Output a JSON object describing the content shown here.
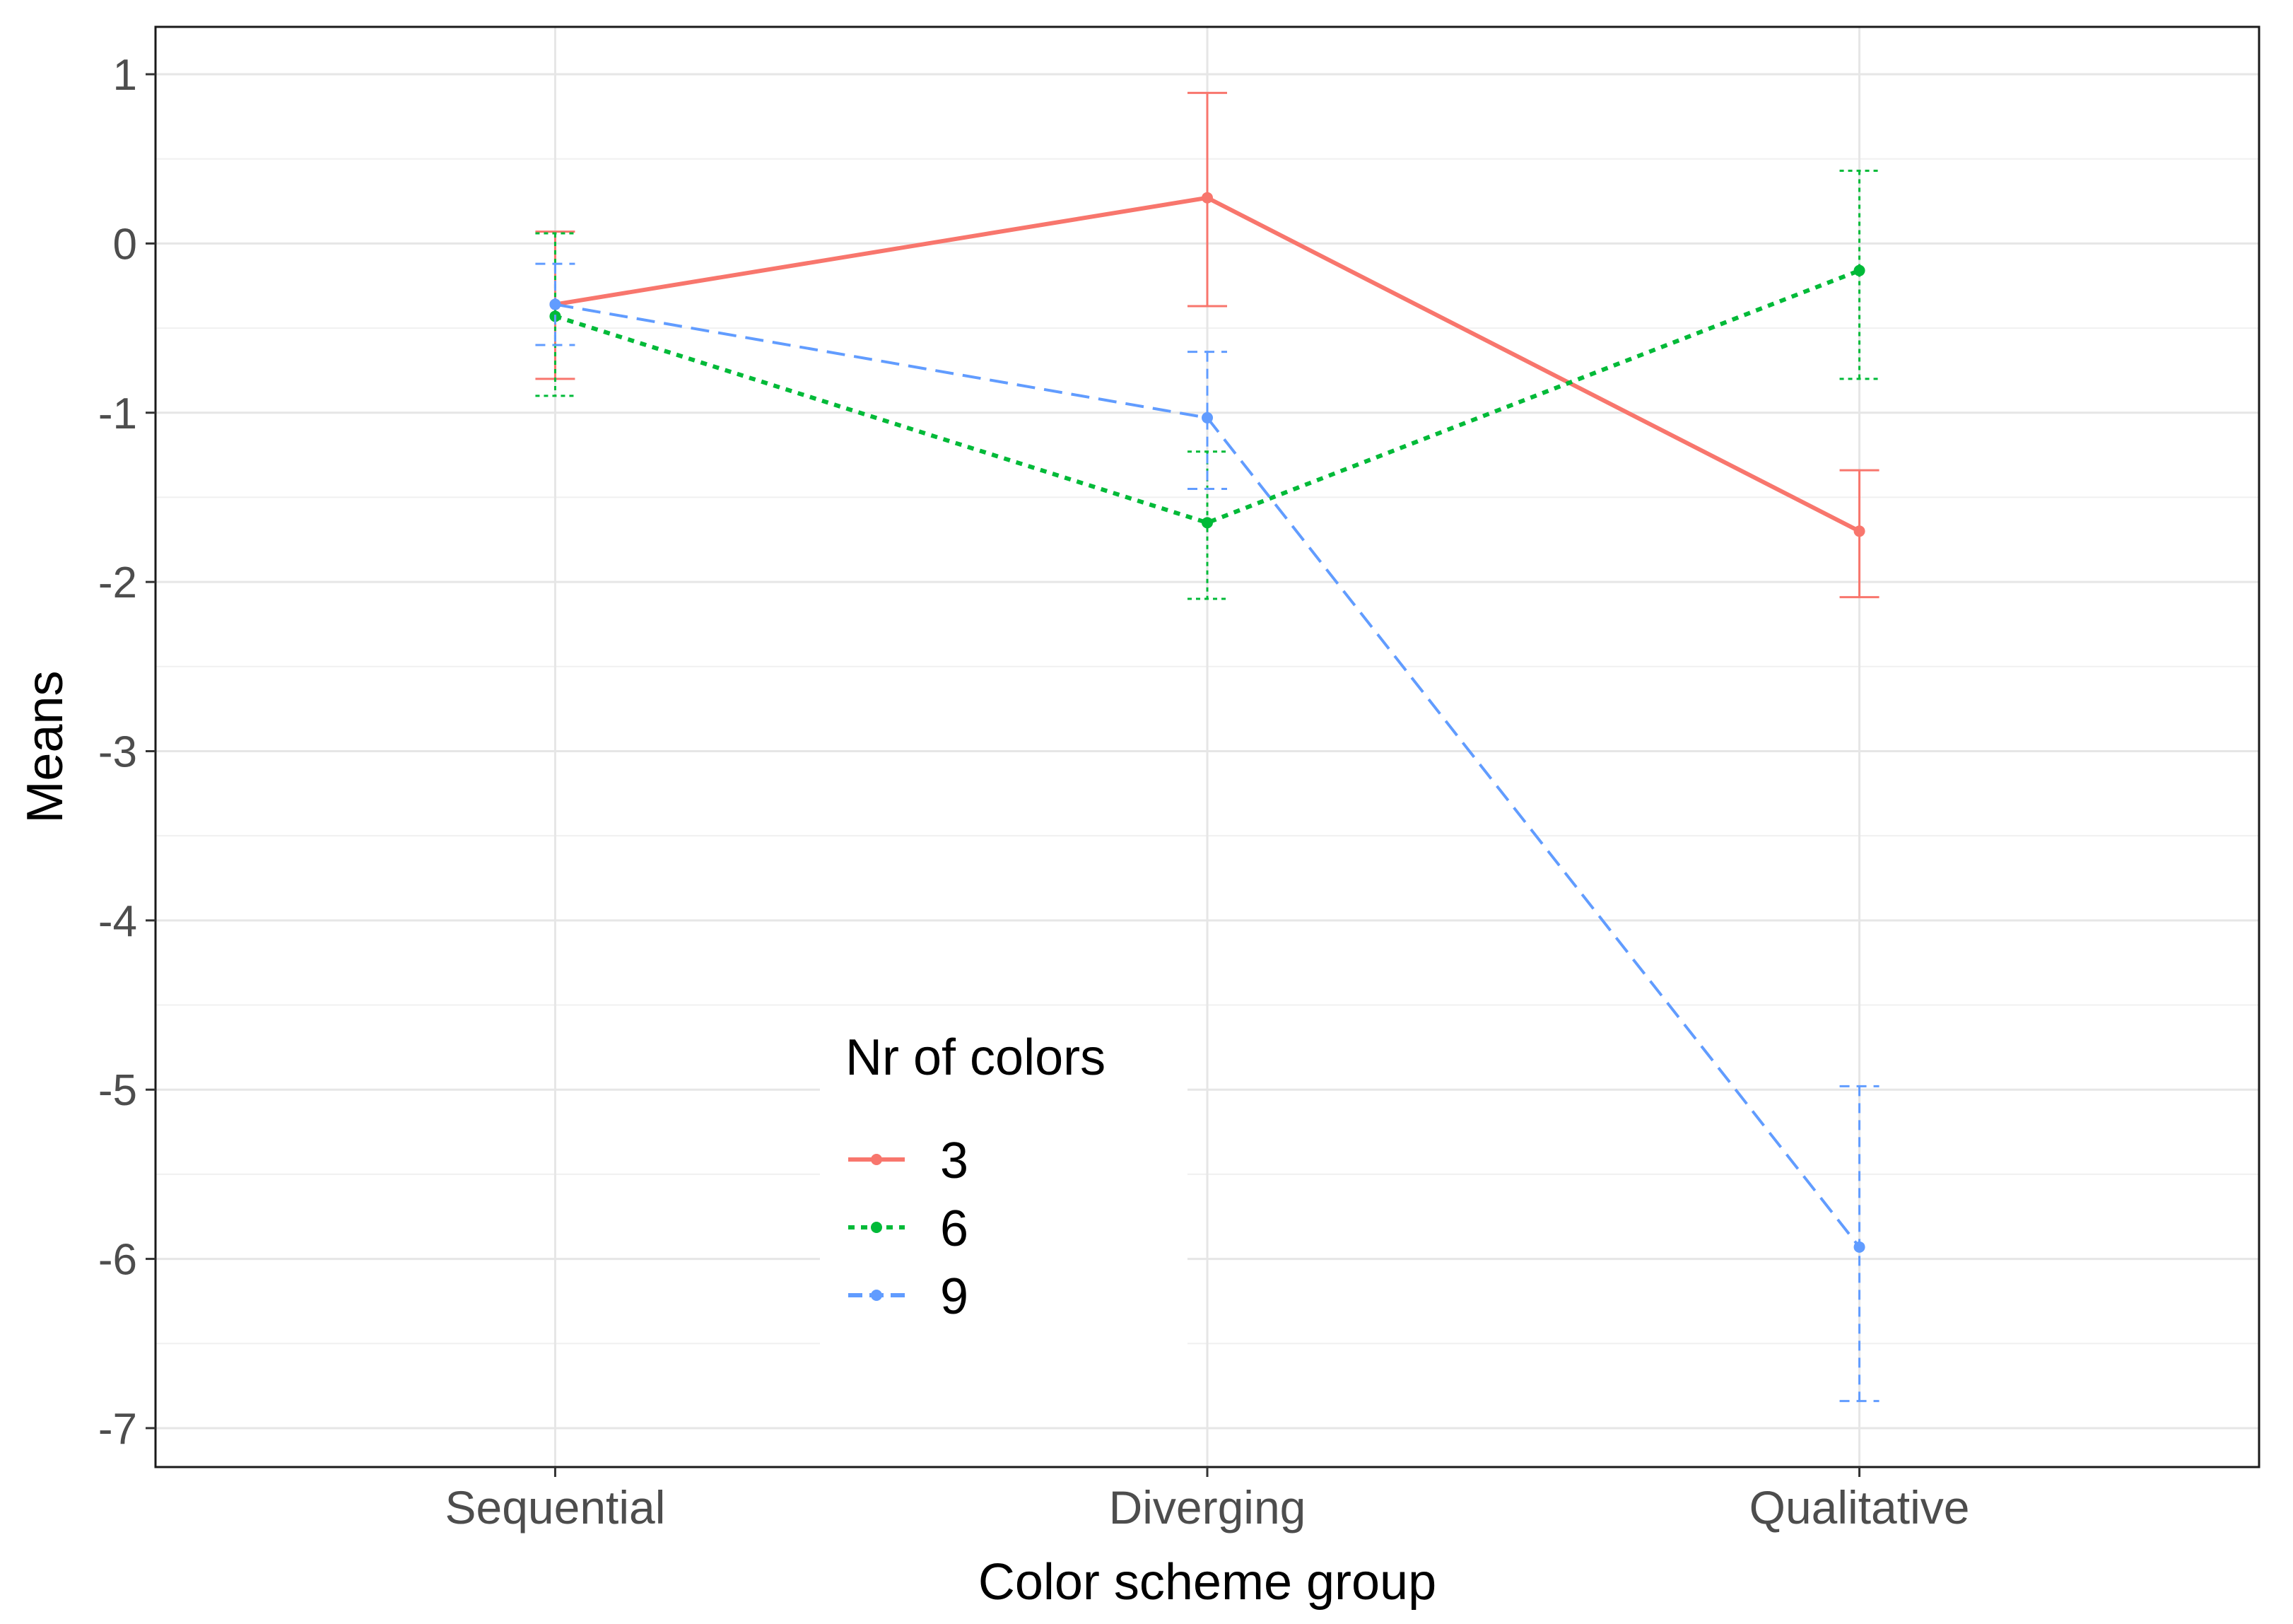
{
  "chart_data": {
    "type": "line",
    "title": "",
    "xlabel": "Color scheme group",
    "ylabel": "Means",
    "categories": [
      "Sequential",
      "Diverging",
      "Qualitative"
    ],
    "y_ticks": [
      1,
      0,
      -1,
      -2,
      -3,
      -4,
      -5,
      -6,
      -7
    ],
    "y_tick_labels": [
      "1",
      "0",
      "-1",
      "-2",
      "-3",
      "-4",
      "-5",
      "-6",
      "-7"
    ],
    "ylim": [
      -7.23,
      1.28
    ],
    "grid": true,
    "legend": {
      "title": "Nr of colors",
      "placement": "bottom-center"
    },
    "series": [
      {
        "name": "3",
        "color": "#F8766D",
        "dash": "solid",
        "values": [
          -0.36,
          0.27,
          -1.7
        ],
        "error_lower": [
          -0.8,
          -0.37,
          -2.09
        ],
        "error_upper": [
          0.07,
          0.89,
          -1.34
        ]
      },
      {
        "name": "6",
        "color": "#00BA38",
        "dash": "dotted",
        "values": [
          -0.43,
          -1.65,
          -0.16
        ],
        "error_lower": [
          -0.9,
          -2.1,
          -0.8
        ],
        "error_upper": [
          0.06,
          -1.23,
          0.43
        ]
      },
      {
        "name": "9",
        "color": "#619CFF",
        "dash": "dashed",
        "values": [
          -0.36,
          -1.03,
          -5.93
        ],
        "error_lower": [
          -0.6,
          -1.45,
          -6.84
        ],
        "error_upper": [
          -0.12,
          -0.64,
          -4.98
        ]
      }
    ]
  }
}
